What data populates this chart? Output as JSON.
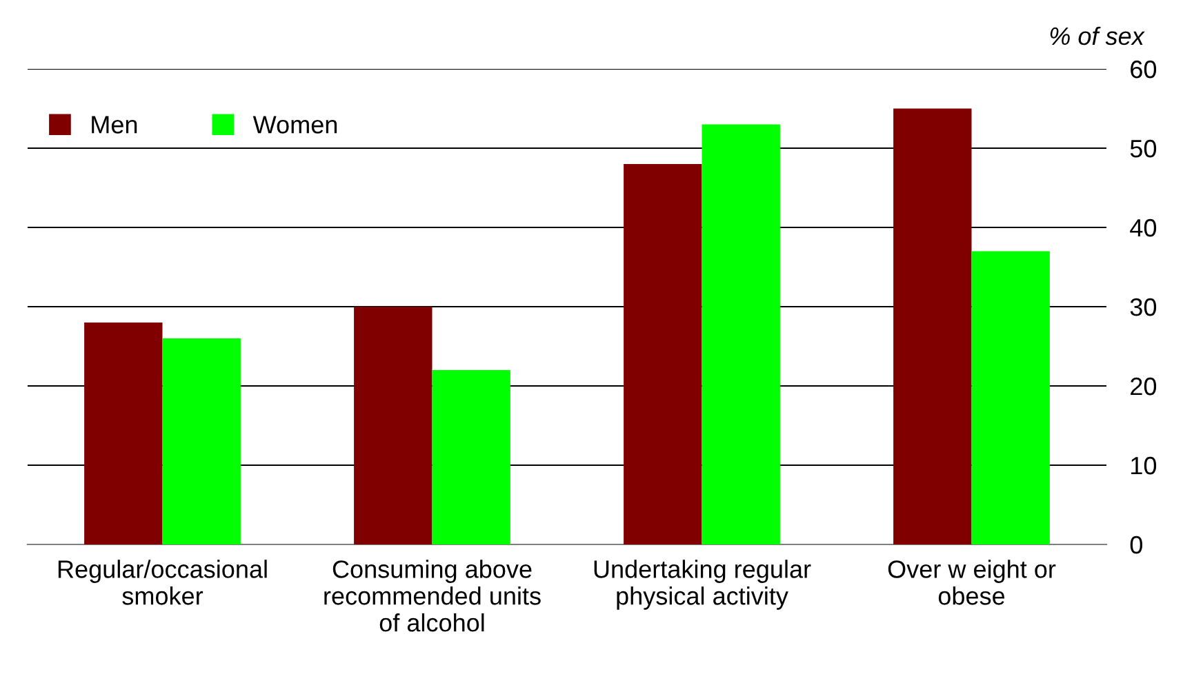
{
  "chart_data": {
    "type": "bar",
    "ylabel": "% of sex",
    "categories": [
      "Regular/occasional\nsmoker",
      "Consuming above\nrecommended units\nof alcohol",
      "Undertaking regular\nphysical activity",
      "Over w eight or\nobese"
    ],
    "series": [
      {
        "name": "Men",
        "color": "#800000",
        "values": [
          28,
          30,
          48,
          55
        ]
      },
      {
        "name": "Women",
        "color": "#00ff00",
        "values": [
          26,
          22,
          53,
          37
        ]
      }
    ],
    "ylim": [
      0,
      60
    ],
    "yticks": [
      0,
      10,
      20,
      30,
      40,
      50,
      60
    ],
    "grid": "y",
    "legend": "top left"
  }
}
